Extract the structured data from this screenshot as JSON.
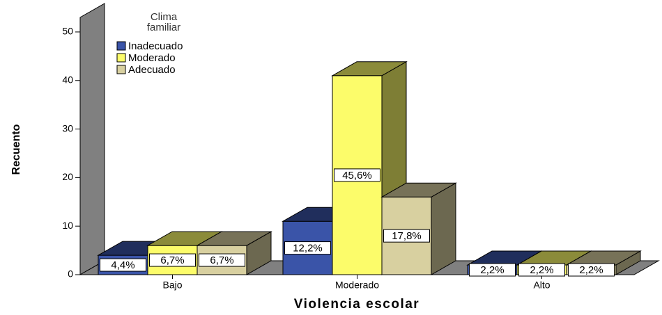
{
  "chart_data": {
    "type": "bar3d",
    "x_label": "Violencia escolar",
    "y_label": "Recuento",
    "legend_title": "Clima familiar",
    "categories": [
      "Bajo",
      "Moderado",
      "Alto"
    ],
    "series": [
      {
        "name": "Inadecuado",
        "color": "#3a54a8",
        "values": [
          4,
          11,
          2
        ],
        "value_labels": [
          "4,4%",
          "12,2%",
          "2,2%"
        ]
      },
      {
        "name": "Moderado",
        "color": "#fcfc6a",
        "values": [
          6,
          41,
          2
        ],
        "value_labels": [
          "6,7%",
          "45,6%",
          "2,2%"
        ]
      },
      {
        "name": "Adecuado",
        "color": "#d8d0a0",
        "values": [
          6,
          16,
          2
        ],
        "value_labels": [
          "6,7%",
          "17,8%",
          "2,2%"
        ]
      }
    ],
    "ylim": [
      0,
      53
    ],
    "yticks": [
      0,
      10,
      20,
      30,
      40,
      50
    ],
    "legend_position": "upper left"
  }
}
